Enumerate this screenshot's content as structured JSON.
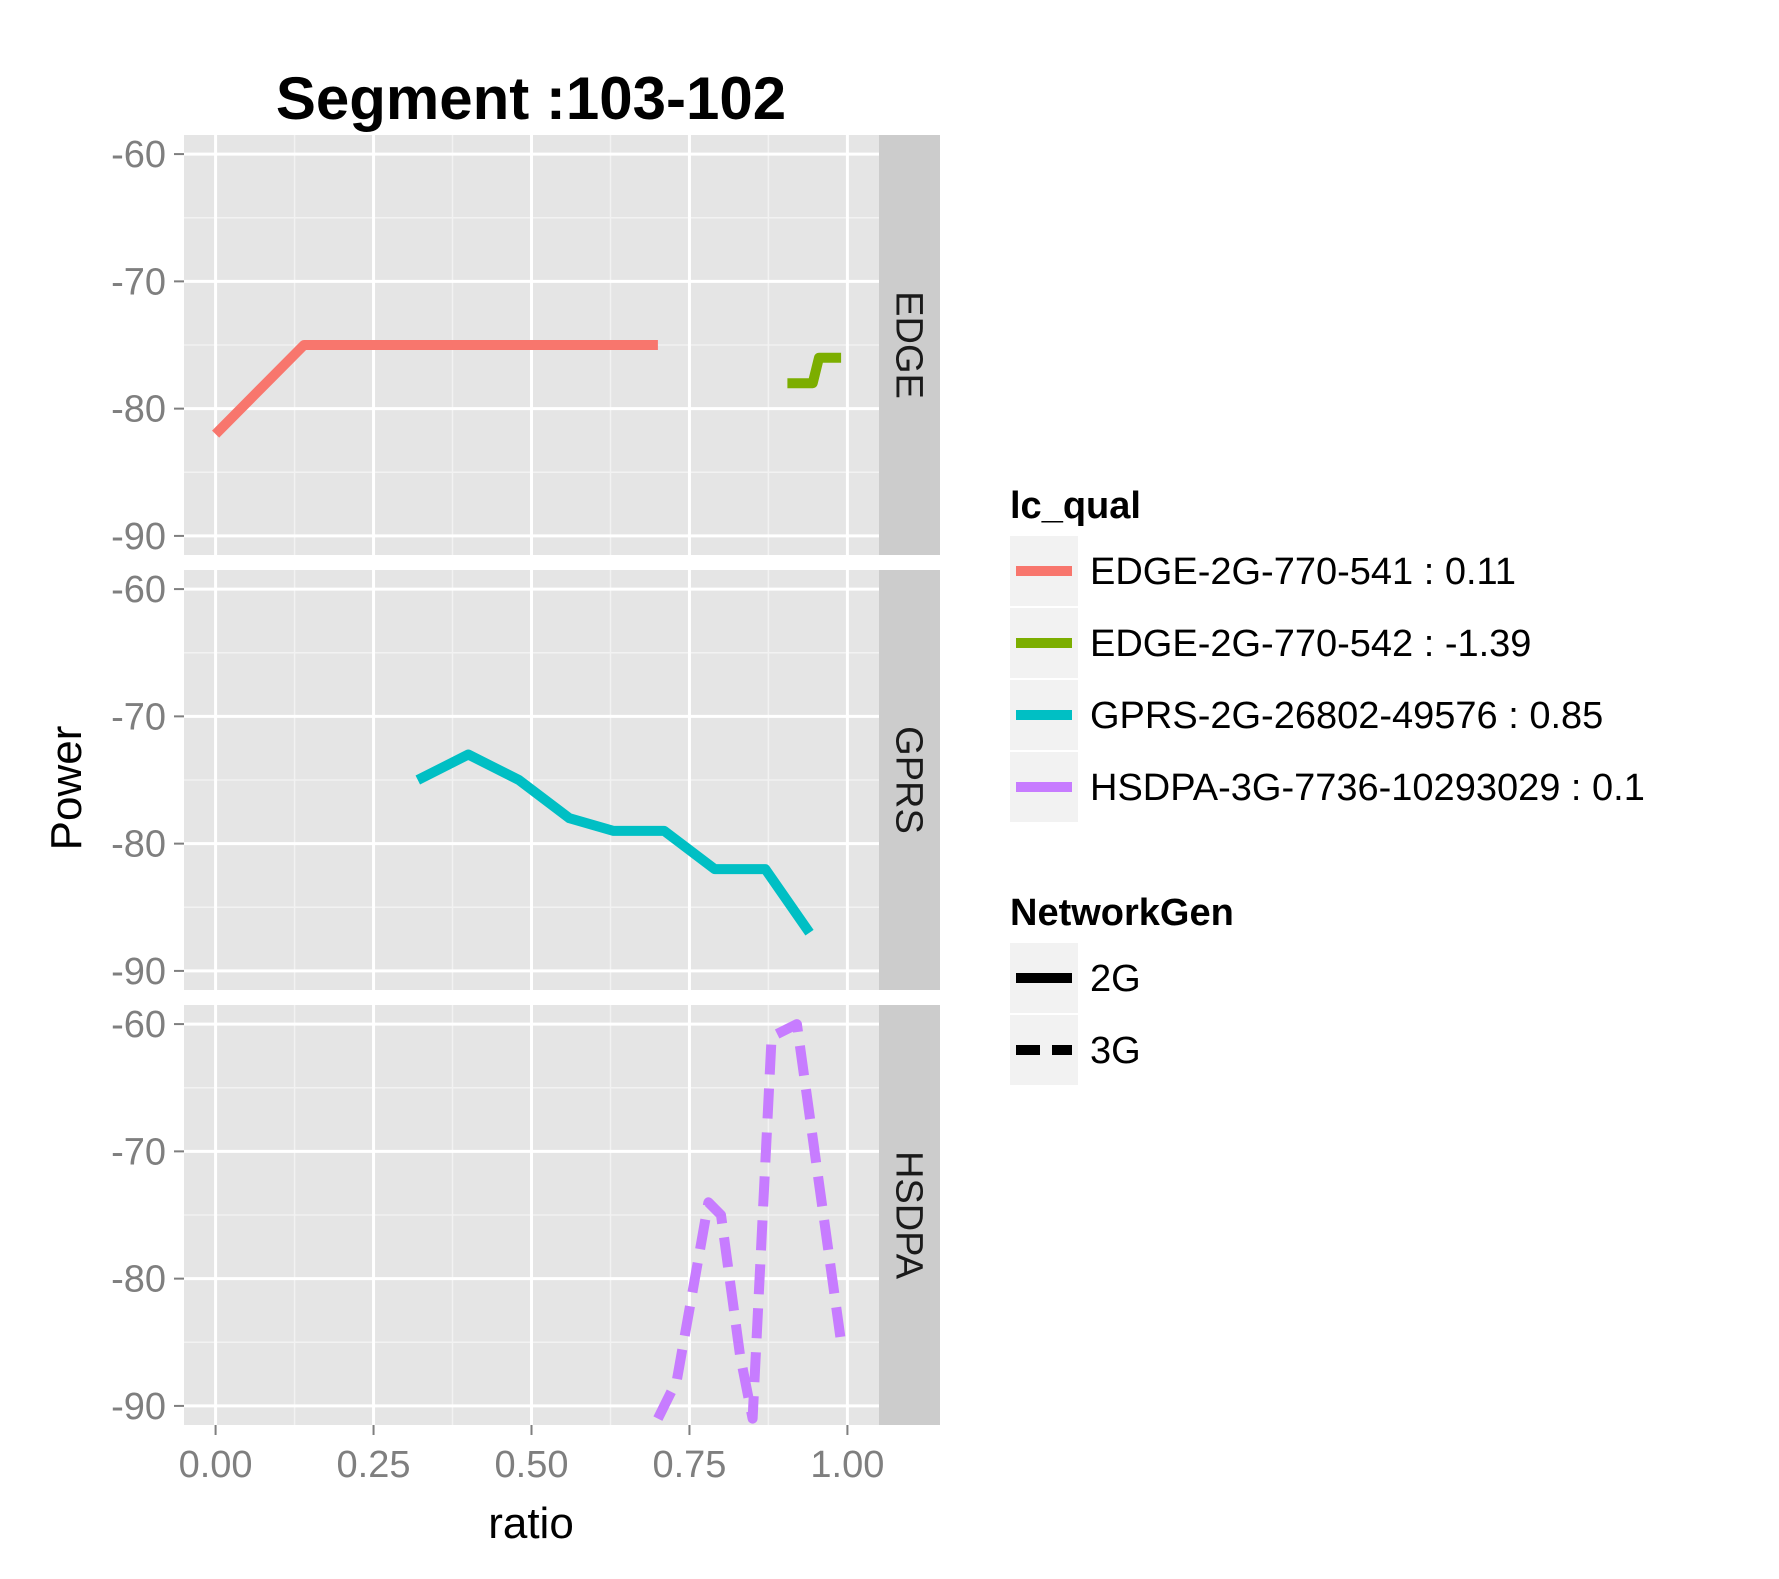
{
  "chart_data": {
    "type": "line",
    "title": "Segment :103-102",
    "xlabel": "ratio",
    "ylabel": "Power",
    "xlim": [
      -0.05,
      1.05
    ],
    "ylim": [
      -91.5,
      -58.5
    ],
    "x_ticks": [
      "0.00",
      "0.25",
      "0.50",
      "0.75",
      "1.00"
    ],
    "y_ticks": [
      "-60",
      "-70",
      "-80",
      "-90"
    ],
    "facets": [
      "EDGE",
      "GPRS",
      "HSDPA"
    ],
    "grid": true,
    "legend_position": "right",
    "colors": {
      "panel_bg": "#e5e5e5",
      "strip_bg": "#cccccc",
      "grid_major": "#ffffff",
      "grid_minor": "#f2f2f2",
      "tick_text": "#7f7f7f"
    },
    "series": [
      {
        "name": "EDGE-2G-770-541 : 0.11",
        "facet": "EDGE",
        "color": "#F8766D",
        "linetype": "solid",
        "points": [
          [
            0.0,
            -82
          ],
          [
            0.06,
            -79
          ],
          [
            0.14,
            -75
          ],
          [
            0.3,
            -75
          ],
          [
            0.5,
            -75
          ],
          [
            0.7,
            -75
          ]
        ]
      },
      {
        "name": "EDGE-2G-770-542 : -1.39",
        "facet": "EDGE",
        "color": "#7CAE00",
        "linetype": "solid",
        "points": [
          [
            0.905,
            -78
          ],
          [
            0.945,
            -78
          ],
          [
            0.955,
            -76
          ],
          [
            0.99,
            -76
          ]
        ]
      },
      {
        "name": "GPRS-2G-26802-49576 : 0.85",
        "facet": "GPRS",
        "color": "#00BFC4",
        "linetype": "solid",
        "points": [
          [
            0.32,
            -75
          ],
          [
            0.4,
            -73
          ],
          [
            0.48,
            -75
          ],
          [
            0.56,
            -78
          ],
          [
            0.63,
            -79
          ],
          [
            0.71,
            -79
          ],
          [
            0.79,
            -82
          ],
          [
            0.87,
            -82
          ],
          [
            0.94,
            -87
          ]
        ]
      },
      {
        "name": "HSDPA-3G-7736-10293029 : 0.1",
        "facet": "HSDPA",
        "color": "#C77CFF",
        "linetype": "dashed",
        "points": [
          [
            0.7,
            -91
          ],
          [
            0.73,
            -88
          ],
          [
            0.78,
            -74
          ],
          [
            0.8,
            -75
          ],
          [
            0.83,
            -86
          ],
          [
            0.85,
            -91
          ],
          [
            0.88,
            -61
          ],
          [
            0.92,
            -60
          ],
          [
            0.99,
            -85
          ]
        ]
      }
    ],
    "legends": [
      {
        "title": "lc_qual",
        "entries": [
          {
            "label": "EDGE-2G-770-541 : 0.11",
            "color": "#F8766D",
            "linetype": "solid"
          },
          {
            "label": "EDGE-2G-770-542 : -1.39",
            "color": "#7CAE00",
            "linetype": "solid"
          },
          {
            "label": "GPRS-2G-26802-49576 : 0.85",
            "color": "#00BFC4",
            "linetype": "solid"
          },
          {
            "label": "HSDPA-3G-7736-10293029 : 0.1",
            "color": "#C77CFF",
            "linetype": "solid"
          }
        ]
      },
      {
        "title": "NetworkGen",
        "entries": [
          {
            "label": "2G",
            "color": "#000000",
            "linetype": "solid"
          },
          {
            "label": "3G",
            "color": "#000000",
            "linetype": "dashed"
          }
        ]
      }
    ]
  }
}
